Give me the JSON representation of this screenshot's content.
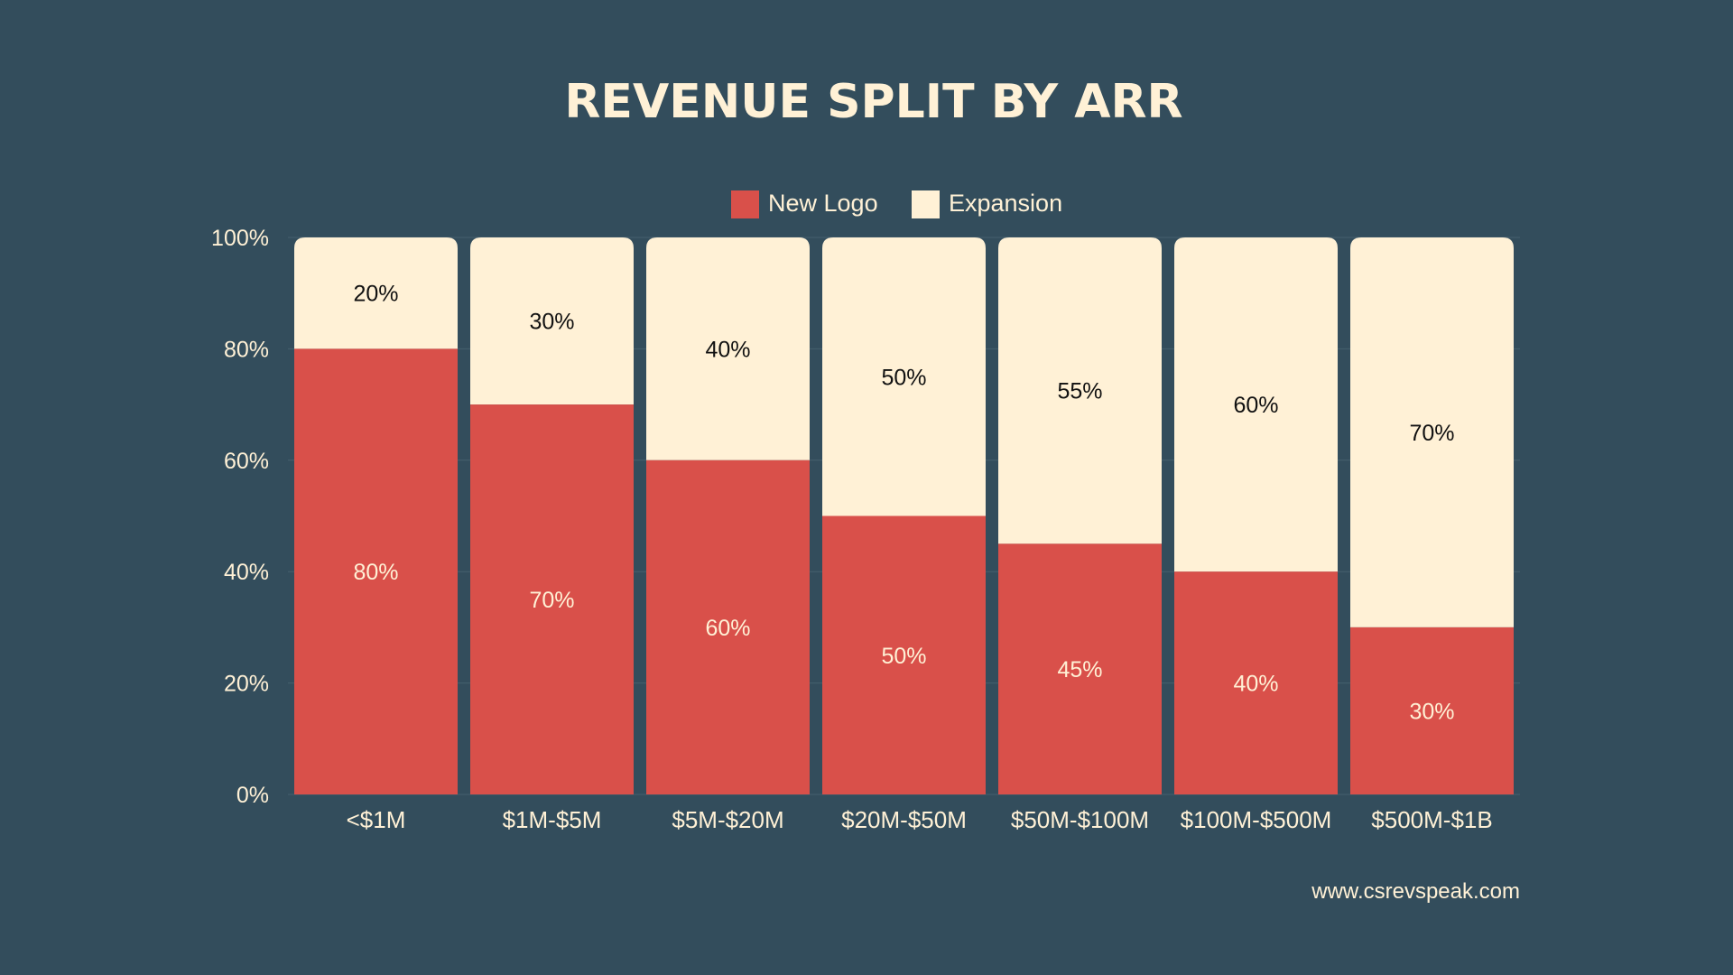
{
  "chart_data": {
    "type": "bar",
    "stacked": true,
    "title": "REVENUE SPLIT BY ARR",
    "categories": [
      "<$1M",
      "$1M-$5M",
      "$5M-$20M",
      "$20M-$50M",
      "$50M-$100M",
      "$100M-$500M",
      "$500M-$1B"
    ],
    "series": [
      {
        "name": "New Logo",
        "color": "#d9504a",
        "values": [
          80,
          70,
          60,
          50,
          45,
          40,
          30
        ],
        "labels": [
          "80%",
          "70%",
          "60%",
          "50%",
          "45%",
          "40%",
          "30%"
        ]
      },
      {
        "name": "Expansion",
        "color": "#fff1d6",
        "values": [
          20,
          30,
          40,
          50,
          55,
          60,
          70
        ],
        "labels": [
          "20%",
          "30%",
          "40%",
          "50%",
          "55%",
          "60%",
          "70%"
        ]
      }
    ],
    "yticks": [
      "0%",
      "20%",
      "40%",
      "60%",
      "80%",
      "100%"
    ],
    "ylim": [
      0,
      100
    ],
    "grid": true,
    "legend": "top-center"
  },
  "footer": {
    "url": "www.csrevspeak.com"
  },
  "colors": {
    "background": "#334d5c",
    "text": "#fff1d6",
    "gridline": "#46606e"
  }
}
